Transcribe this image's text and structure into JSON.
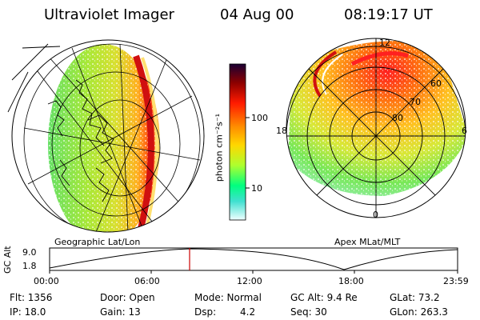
{
  "header": {
    "instrument": "Ultraviolet Imager",
    "date": "04 Aug 00",
    "time": "08:19:17 UT"
  },
  "colorbar": {
    "unit_label": "photon cm⁻²s⁻¹",
    "tick_100": "100",
    "tick_10": "10",
    "colors": [
      "#1a0033",
      "#8b0000",
      "#ff0000",
      "#ff8c00",
      "#ffd700",
      "#adff2f",
      "#00ff7f",
      "#40e0d0",
      "#e0ffff"
    ]
  },
  "left_map": {
    "caption": "Geographic Lat/Lon"
  },
  "right_map": {
    "caption": "Apex MLat/MLT",
    "mlt_labels": {
      "top": "12",
      "left": "18",
      "right": "6",
      "bottom": "0"
    },
    "lat_labels": [
      "60",
      "70",
      "80"
    ]
  },
  "timeline": {
    "ylabel": "GC Alt",
    "y_ticks": [
      "9.0",
      "1.8"
    ],
    "x_ticks": [
      "00:00",
      "06:00",
      "12:00",
      "18:00",
      "23:59"
    ],
    "marker_color": "#cc0000"
  },
  "status": {
    "flt": "Flt: 1356",
    "ip": "IP: 18.0",
    "door": "Door: Open",
    "gain": "Gain: 13",
    "mode": "Mode: Normal",
    "dsp_label": "Dsp:",
    "dsp_value": "4.2",
    "gc_alt": "GC Alt: 9.4 Re",
    "seq": "Seq: 30",
    "glat": "GLat: 73.2",
    "glon": "GLon: 263.3"
  }
}
